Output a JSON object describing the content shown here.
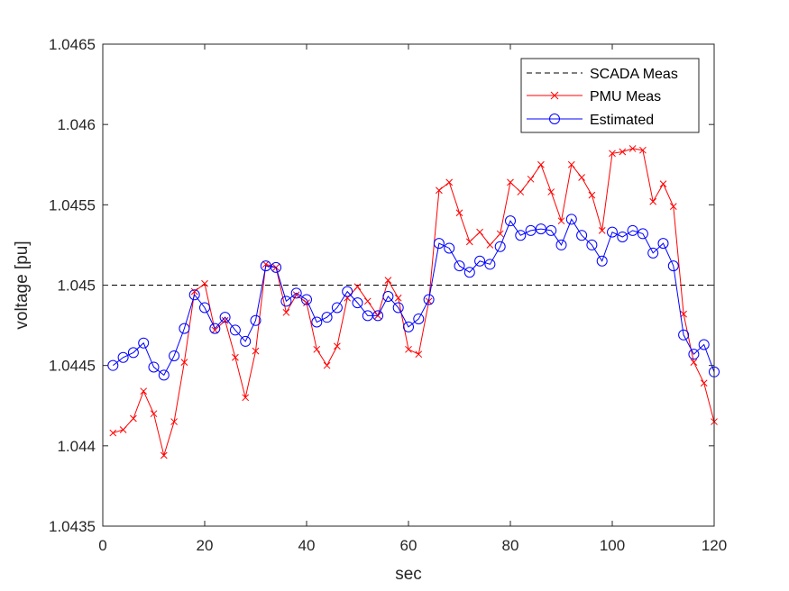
{
  "chart_data": {
    "type": "line",
    "title": "",
    "xlabel": "sec",
    "ylabel": "voltage [pu]",
    "xlim": [
      0,
      120
    ],
    "ylim": [
      1.0435,
      1.0465
    ],
    "xticks": [
      0,
      20,
      40,
      60,
      80,
      100,
      120
    ],
    "yticks": [
      1.0435,
      1.044,
      1.0445,
      1.045,
      1.0455,
      1.046,
      1.0465
    ],
    "xtick_labels": [
      "0",
      "20",
      "40",
      "60",
      "80",
      "100",
      "120"
    ],
    "ytick_labels": [
      "1.0435",
      "1.044",
      "1.0445",
      "1.045",
      "1.0455",
      "1.046",
      "1.0465"
    ],
    "grid": false,
    "legend_position": "top-right",
    "x": [
      2,
      4,
      6,
      8,
      10,
      12,
      14,
      16,
      18,
      20,
      22,
      24,
      26,
      28,
      30,
      32,
      34,
      36,
      38,
      40,
      42,
      44,
      46,
      48,
      50,
      52,
      54,
      56,
      58,
      60,
      62,
      64,
      66,
      68,
      70,
      72,
      74,
      76,
      78,
      80,
      82,
      84,
      86,
      88,
      90,
      92,
      94,
      96,
      98,
      100,
      102,
      104,
      106,
      108,
      110,
      112,
      114,
      116,
      118,
      120
    ],
    "series": [
      {
        "name": "SCADA Meas",
        "style": "dashed",
        "color": "#000000",
        "marker": "none",
        "x": [
          0,
          120
        ],
        "values": [
          1.045,
          1.045
        ]
      },
      {
        "name": "PMU Meas",
        "style": "solid",
        "color": "#ff0000",
        "marker": "x",
        "values": [
          1.04408,
          1.0441,
          1.04417,
          1.04434,
          1.0442,
          1.04394,
          1.04415,
          1.04452,
          1.04496,
          1.04501,
          1.04472,
          1.04478,
          1.04455,
          1.0443,
          1.04459,
          1.04513,
          1.04511,
          1.04483,
          1.04494,
          1.04489,
          1.0446,
          1.0445,
          1.04462,
          1.04492,
          1.04499,
          1.0449,
          1.04481,
          1.04503,
          1.04492,
          1.0446,
          1.04457,
          1.0449,
          1.04559,
          1.04564,
          1.04545,
          1.04527,
          1.04533,
          1.04525,
          1.04532,
          1.04564,
          1.04558,
          1.04566,
          1.04575,
          1.04558,
          1.0454,
          1.04575,
          1.04567,
          1.04556,
          1.04534,
          1.04582,
          1.04583,
          1.04585,
          1.04584,
          1.04552,
          1.04563,
          1.04549,
          1.04482,
          1.04452,
          1.04439,
          1.04415
        ]
      },
      {
        "name": "Estimated",
        "style": "solid",
        "color": "#0000ff",
        "marker": "o",
        "values": [
          1.0445,
          1.04455,
          1.04458,
          1.04464,
          1.04449,
          1.04444,
          1.04456,
          1.04473,
          1.04494,
          1.04486,
          1.04473,
          1.0448,
          1.04472,
          1.04465,
          1.04478,
          1.04512,
          1.04511,
          1.0449,
          1.04495,
          1.04491,
          1.04477,
          1.0448,
          1.04486,
          1.04496,
          1.04489,
          1.04481,
          1.04481,
          1.04493,
          1.04486,
          1.04474,
          1.04479,
          1.04491,
          1.04526,
          1.04523,
          1.04512,
          1.04508,
          1.04515,
          1.04513,
          1.04524,
          1.0454,
          1.04531,
          1.04534,
          1.04535,
          1.04534,
          1.04525,
          1.04541,
          1.04531,
          1.04525,
          1.04515,
          1.04533,
          1.0453,
          1.04534,
          1.04532,
          1.0452,
          1.04526,
          1.04512,
          1.04469,
          1.04457,
          1.04463,
          1.04446
        ]
      }
    ]
  }
}
